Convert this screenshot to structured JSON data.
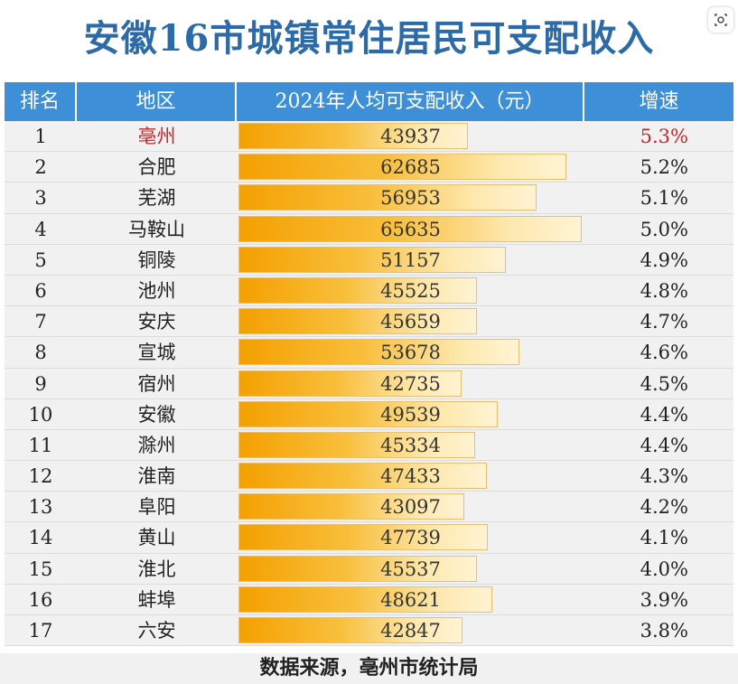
{
  "chart_data": {
    "type": "table",
    "title": "安徽16市城镇常住居民可支配收入",
    "columns": [
      "排名",
      "地区",
      "2024年人均可支配收入（元）",
      "增速"
    ],
    "rows": [
      {
        "rank": "1",
        "region": "亳州",
        "income": 43937,
        "growth": "5.3%",
        "highlight": true
      },
      {
        "rank": "2",
        "region": "合肥",
        "income": 62685,
        "growth": "5.2%"
      },
      {
        "rank": "3",
        "region": "芜湖",
        "income": 56953,
        "growth": "5.1%"
      },
      {
        "rank": "4",
        "region": "马鞍山",
        "income": 65635,
        "growth": "5.0%"
      },
      {
        "rank": "5",
        "region": "铜陵",
        "income": 51157,
        "growth": "4.9%"
      },
      {
        "rank": "6",
        "region": "池州",
        "income": 45525,
        "growth": "4.8%"
      },
      {
        "rank": "7",
        "region": "安庆",
        "income": 45659,
        "growth": "4.7%"
      },
      {
        "rank": "8",
        "region": "宣城",
        "income": 53678,
        "growth": "4.6%"
      },
      {
        "rank": "9",
        "region": "宿州",
        "income": 42735,
        "growth": "4.5%"
      },
      {
        "rank": "10",
        "region": "安徽",
        "income": 49539,
        "growth": "4.4%"
      },
      {
        "rank": "11",
        "region": "滁州",
        "income": 45334,
        "growth": "4.4%"
      },
      {
        "rank": "12",
        "region": "淮南",
        "income": 47433,
        "growth": "4.3%"
      },
      {
        "rank": "13",
        "region": "阜阳",
        "income": 43097,
        "growth": "4.2%"
      },
      {
        "rank": "14",
        "region": "黄山",
        "income": 47739,
        "growth": "4.1%"
      },
      {
        "rank": "15",
        "region": "淮北",
        "income": 45537,
        "growth": "4.0%"
      },
      {
        "rank": "16",
        "region": "蚌埠",
        "income": 48621,
        "growth": "3.9%"
      },
      {
        "rank": "17",
        "region": "六安",
        "income": 42847,
        "growth": "3.8%"
      }
    ],
    "bar_max_value": 65635,
    "bar_color": "#f4a000",
    "header_color": "#3d8fd8",
    "highlight_color": "#c1272d"
  },
  "footer": "数据来源，亳州市统计局"
}
